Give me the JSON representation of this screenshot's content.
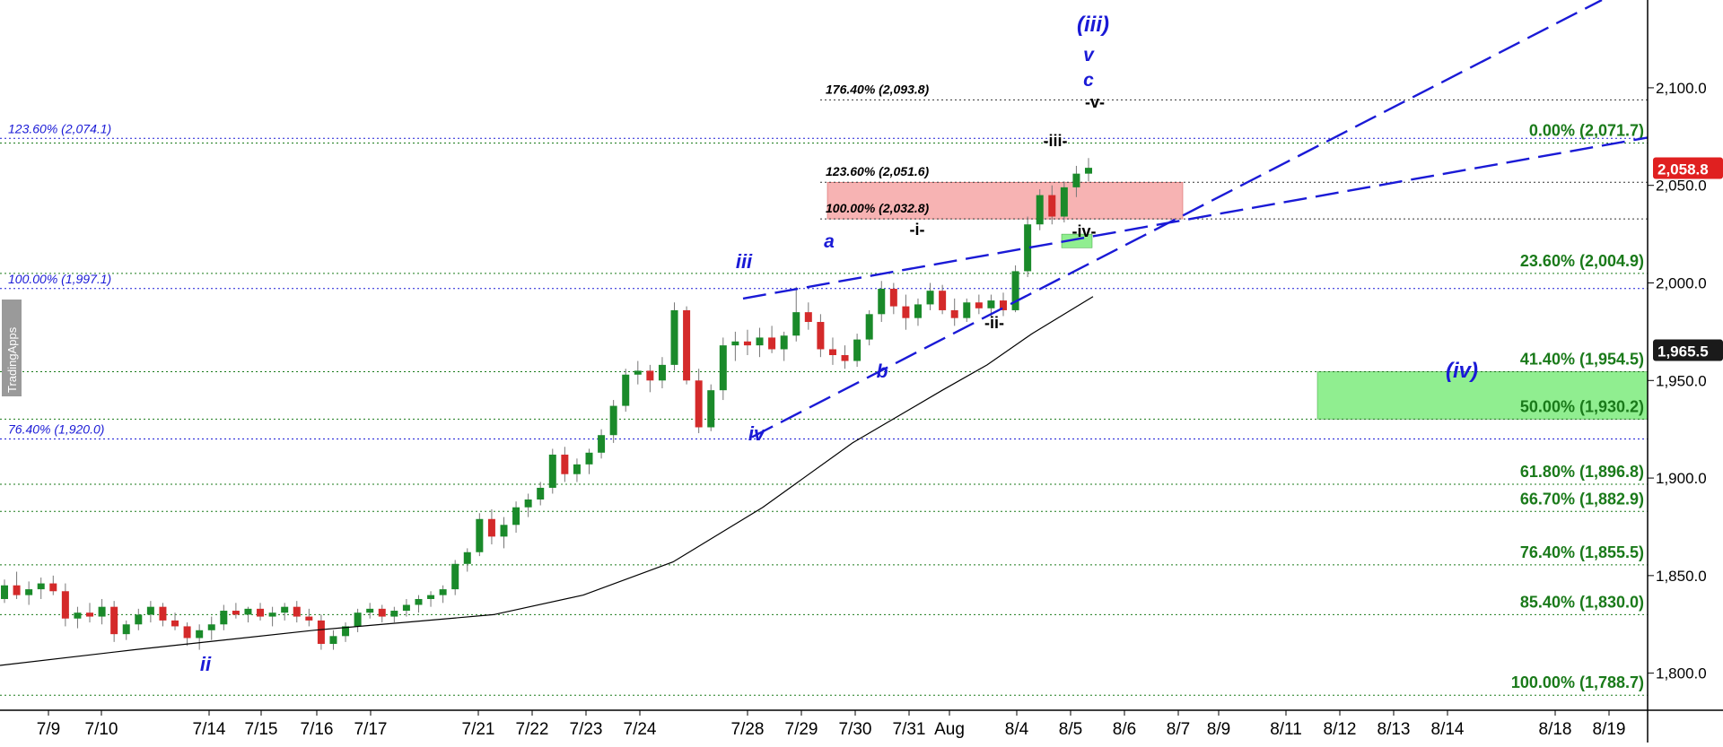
{
  "watermark": "TradingApps",
  "chart_data": {
    "type": "candlestick",
    "title": "",
    "xlabel": "",
    "ylabel": "",
    "ylim": [
      1781,
      2145
    ],
    "price_axis_ticks": [
      "2,100.0",
      "2,050.0",
      "2,000.0",
      "1,950.0",
      "1,900.0",
      "1,850.0",
      "1,800.0"
    ],
    "last_price": "2,058.8",
    "ma_price": "1,965.5",
    "date_labels": [
      "7/9",
      "7/10",
      "7/14",
      "7/15",
      "7/16",
      "7/17",
      "7/21",
      "7/22",
      "7/23",
      "7/24",
      "7/28",
      "7/29",
      "7/30",
      "7/31",
      "Aug",
      "8/4",
      "8/5",
      "8/6",
      "8/7",
      "8/9",
      "8/11",
      "8/12",
      "8/13",
      "8/14",
      "8/18",
      "8/19"
    ],
    "fib_retracements": [
      {
        "label": "0.00% (2,071.7)",
        "price": 2071.7
      },
      {
        "label": "23.60% (2,004.9)",
        "price": 2004.9
      },
      {
        "label": "41.40% (1,954.5)",
        "price": 1954.5
      },
      {
        "label": "50.00% (1,930.2)",
        "price": 1930.2
      },
      {
        "label": "61.80% (1,896.8)",
        "price": 1896.8
      },
      {
        "label": "66.70% (1,882.9)",
        "price": 1882.9
      },
      {
        "label": "76.40% (1,855.5)",
        "price": 1855.5
      },
      {
        "label": "85.40% (1,830.0)",
        "price": 1830.0
      },
      {
        "label": "100.00% (1,788.7)",
        "price": 1788.7
      }
    ],
    "fib_extensions_blue": [
      {
        "label": "123.60% (2,074.1)",
        "price": 2074.1
      },
      {
        "label": "100.00% (1,997.1)",
        "price": 1997.1
      },
      {
        "label": "76.40% (1,920.0)",
        "price": 1920.0
      }
    ],
    "fib_extensions_black": [
      {
        "label": "176.40% (2,093.8)",
        "price": 2093.8
      },
      {
        "label": "123.60% (2,051.6)",
        "price": 2051.6
      },
      {
        "label": "100.00% (2,032.8)",
        "price": 2032.8
      }
    ],
    "wave_labels": {
      "iii_major": "(iii)",
      "v": "v",
      "c": "c",
      "minor_v": "-v-",
      "minor_iii": "-iii-",
      "minor_i": "-i-",
      "minor_iv": "-iv-",
      "minor_ii": "-ii-",
      "a": "a",
      "b": "b",
      "iii": "iii",
      "iv": "iv",
      "ii": "ii",
      "target_iv": "(iv)"
    },
    "candles": [
      [
        1838,
        1848,
        1836,
        1845
      ],
      [
        1845,
        1852,
        1838,
        1840
      ],
      [
        1840,
        1847,
        1835,
        1843
      ],
      [
        1843,
        1849,
        1838,
        1846
      ],
      [
        1846,
        1850,
        1840,
        1842
      ],
      [
        1842,
        1846,
        1824,
        1828
      ],
      [
        1828,
        1834,
        1823,
        1831
      ],
      [
        1831,
        1836,
        1826,
        1829
      ],
      [
        1829,
        1838,
        1825,
        1834
      ],
      [
        1834,
        1837,
        1816,
        1820
      ],
      [
        1820,
        1827,
        1817,
        1825
      ],
      [
        1825,
        1833,
        1822,
        1830
      ],
      [
        1830,
        1837,
        1826,
        1834
      ],
      [
        1834,
        1836,
        1824,
        1827
      ],
      [
        1827,
        1831,
        1822,
        1824
      ],
      [
        1824,
        1826,
        1814,
        1818
      ],
      [
        1818,
        1825,
        1812,
        1822
      ],
      [
        1822,
        1829,
        1817,
        1825
      ],
      [
        1825,
        1835,
        1822,
        1832
      ],
      [
        1832,
        1836,
        1828,
        1830
      ],
      [
        1830,
        1834,
        1826,
        1833
      ],
      [
        1833,
        1836,
        1827,
        1829
      ],
      [
        1829,
        1834,
        1824,
        1831
      ],
      [
        1831,
        1836,
        1827,
        1834
      ],
      [
        1834,
        1837,
        1826,
        1829
      ],
      [
        1829,
        1833,
        1824,
        1827
      ],
      [
        1827,
        1830,
        1812,
        1815
      ],
      [
        1815,
        1822,
        1812,
        1819
      ],
      [
        1819,
        1826,
        1816,
        1824
      ],
      [
        1824,
        1833,
        1821,
        1831
      ],
      [
        1831,
        1836,
        1828,
        1833
      ],
      [
        1833,
        1835,
        1826,
        1829
      ],
      [
        1829,
        1834,
        1826,
        1832
      ],
      [
        1832,
        1838,
        1829,
        1835
      ],
      [
        1835,
        1840,
        1831,
        1838
      ],
      [
        1838,
        1842,
        1834,
        1840
      ],
      [
        1840,
        1845,
        1836,
        1843
      ],
      [
        1843,
        1858,
        1840,
        1856
      ],
      [
        1856,
        1864,
        1852,
        1862
      ],
      [
        1862,
        1882,
        1860,
        1879
      ],
      [
        1879,
        1884,
        1866,
        1870
      ],
      [
        1870,
        1880,
        1864,
        1876
      ],
      [
        1876,
        1888,
        1872,
        1885
      ],
      [
        1885,
        1892,
        1880,
        1889
      ],
      [
        1889,
        1898,
        1886,
        1895
      ],
      [
        1895,
        1915,
        1892,
        1912
      ],
      [
        1912,
        1916,
        1898,
        1902
      ],
      [
        1902,
        1910,
        1898,
        1907
      ],
      [
        1907,
        1915,
        1902,
        1913
      ],
      [
        1913,
        1925,
        1910,
        1922
      ],
      [
        1922,
        1940,
        1918,
        1937
      ],
      [
        1937,
        1956,
        1934,
        1953
      ],
      [
        1953,
        1960,
        1948,
        1955
      ],
      [
        1955,
        1958,
        1944,
        1950
      ],
      [
        1950,
        1962,
        1946,
        1958
      ],
      [
        1958,
        1990,
        1955,
        1986
      ],
      [
        1986,
        1988,
        1948,
        1950
      ],
      [
        1950,
        1956,
        1923,
        1926
      ],
      [
        1926,
        1948,
        1924,
        1945
      ],
      [
        1945,
        1972,
        1940,
        1968
      ],
      [
        1968,
        1975,
        1960,
        1970
      ],
      [
        1970,
        1976,
        1963,
        1968
      ],
      [
        1968,
        1977,
        1962,
        1972
      ],
      [
        1972,
        1978,
        1964,
        1966
      ],
      [
        1966,
        1975,
        1960,
        1973
      ],
      [
        1973,
        1998,
        1970,
        1985
      ],
      [
        1985,
        1990,
        1976,
        1980
      ],
      [
        1980,
        1984,
        1962,
        1966
      ],
      [
        1966,
        1972,
        1958,
        1963
      ],
      [
        1963,
        1968,
        1956,
        1960
      ],
      [
        1960,
        1974,
        1957,
        1971
      ],
      [
        1971,
        1986,
        1968,
        1984
      ],
      [
        1984,
        2001,
        1980,
        1997
      ],
      [
        1997,
        2000,
        1984,
        1988
      ],
      [
        1988,
        1994,
        1976,
        1982
      ],
      [
        1982,
        1992,
        1978,
        1989
      ],
      [
        1989,
        2000,
        1986,
        1996
      ],
      [
        1996,
        1999,
        1984,
        1986
      ],
      [
        1986,
        1992,
        1978,
        1982
      ],
      [
        1982,
        1992,
        1980,
        1990
      ],
      [
        1990,
        1994,
        1984,
        1987
      ],
      [
        1987,
        1994,
        1982,
        1991
      ],
      [
        1991,
        1995,
        1983,
        1986
      ],
      [
        1986,
        2009,
        1985,
        2006
      ],
      [
        2006,
        2034,
        2003,
        2030
      ],
      [
        2030,
        2048,
        2027,
        2045
      ],
      [
        2045,
        2050,
        2030,
        2034
      ],
      [
        2034,
        2052,
        2031,
        2049
      ],
      [
        2049,
        2060,
        2044,
        2056
      ],
      [
        2056,
        2064,
        2052,
        2059
      ]
    ]
  }
}
